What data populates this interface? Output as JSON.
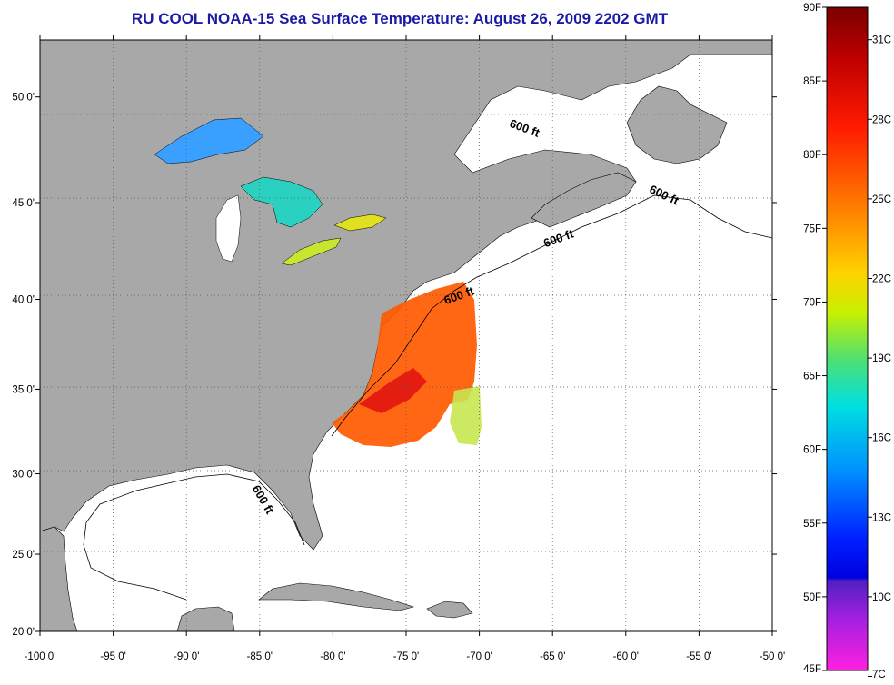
{
  "title": "RU COOL  NOAA-15  Sea Surface Temperature:  August 26, 2009 2202 GMT",
  "map": {
    "lon_ticks": [
      "-100 0'",
      "-95 0'",
      "-90 0'",
      "-85 0'",
      "-80 0'",
      "-75 0'",
      "-70 0'",
      "-65 0'",
      "-60 0'",
      "-55 0'",
      "-50 0'"
    ],
    "lat_ticks": [
      "50 0'",
      "45 0'",
      "40 0'",
      "35 0'",
      "30 0'",
      "25 0'",
      "20 0'"
    ],
    "contour_labels": [
      {
        "text": "600 ft",
        "lon": -67,
        "lat": 48.4
      },
      {
        "text": "600 ft",
        "lon": -57.5,
        "lat": 45.2
      },
      {
        "text": "600 ft",
        "lon": -64.5,
        "lat": 43.0
      },
      {
        "text": "600 ft",
        "lon": -71.3,
        "lat": 40.0
      },
      {
        "text": "600 ft",
        "lon": -85,
        "lat": 28.3
      }
    ],
    "land_color": "#a8a8a8",
    "ocean_color": "#ffffff"
  },
  "colorbar": {
    "f_labels": [
      "90F",
      "85F",
      "80F",
      "75F",
      "70F",
      "65F",
      "60F",
      "55F",
      "50F",
      "45F"
    ],
    "c_labels": [
      "31C",
      "28C",
      "25C",
      "22C",
      "19C",
      "16C",
      "13C",
      "10C",
      "7C"
    ]
  }
}
